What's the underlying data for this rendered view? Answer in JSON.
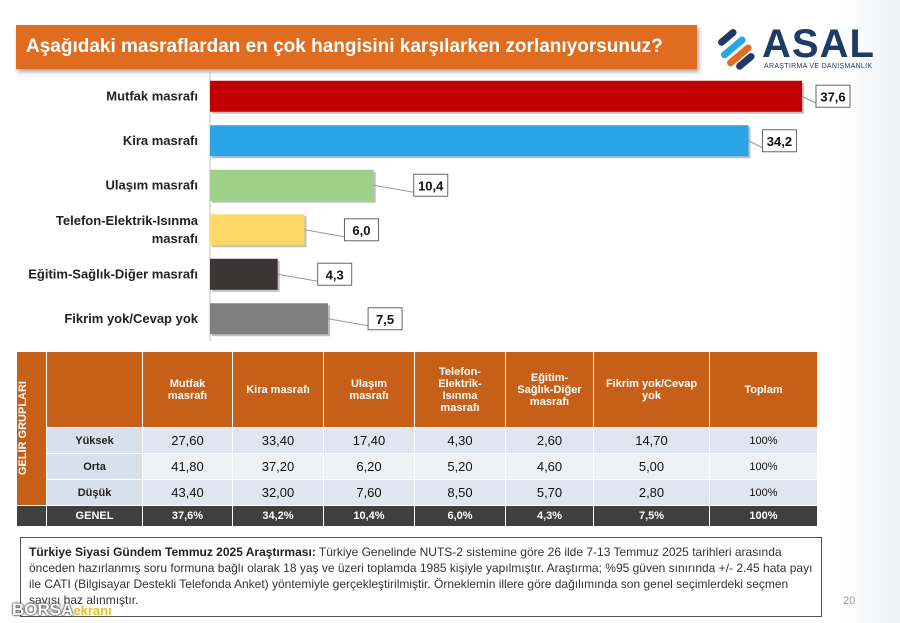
{
  "title": "Aşağıdaki masraflardan en çok hangisini karşılarken zorlanıyorsunuz?",
  "logo": {
    "word": "ASAL",
    "sub": "ARAŞTIRMA VE DANIŞMANLIK"
  },
  "chart_data": {
    "type": "bar",
    "orientation": "horizontal",
    "categories": [
      "Mutfak masrafı",
      "Kira masrafı",
      "Ulaşım masrafı",
      "Telefon-Elektrik-Isınma masrafı",
      "Eğitim-Sağlık-Diğer masrafı",
      "Fikrim yok/Cevap yok"
    ],
    "category_lines": [
      [
        "Mutfak masrafı"
      ],
      [
        "Kira masrafı"
      ],
      [
        "Ulaşım masrafı"
      ],
      [
        "Telefon-Elektrik-Isınma",
        "masrafı"
      ],
      [
        "Eğitim-Sağlık-Diğer masrafı"
      ],
      [
        "Fikrim yok/Cevap yok"
      ]
    ],
    "values": [
      37.6,
      34.2,
      10.4,
      6.0,
      4.3,
      7.5
    ],
    "labels": [
      "37,6",
      "34,2",
      "10,4",
      "6,0",
      "4,3",
      "7,5"
    ],
    "colors": [
      "#c00000",
      "#2aa5e8",
      "#9fd08a",
      "#ffd966",
      "#3a3434",
      "#7f7f7f"
    ],
    "xlim": [
      0,
      40
    ],
    "grid": false,
    "legend": "none"
  },
  "table": {
    "side_label": "GELİR GRUPLARI",
    "headers": [
      [
        "Mutfak",
        "masrafı"
      ],
      [
        "Kira masrafı"
      ],
      [
        "Ulaşım",
        "masrafı"
      ],
      [
        "Telefon-",
        "Elektrik-",
        "Isınma",
        "masrafı"
      ],
      [
        "Eğitim-",
        "Sağlık-Diğer",
        "masrafı"
      ],
      [
        "Fikrim yok/Cevap",
        "yok"
      ],
      [
        "Toplam"
      ]
    ],
    "rows": [
      {
        "label": "Yüksek",
        "values": [
          "27,60",
          "33,40",
          "17,40",
          "4,30",
          "2,60",
          "14,70"
        ],
        "total": "100%"
      },
      {
        "label": "Orta",
        "values": [
          "41,80",
          "37,20",
          "6,20",
          "5,20",
          "4,60",
          "5,00"
        ],
        "total": "100%"
      },
      {
        "label": "Düşük",
        "values": [
          "43,40",
          "32,00",
          "7,60",
          "8,50",
          "5,70",
          "2,80"
        ],
        "total": "100%"
      }
    ],
    "general": {
      "label": "GENEL",
      "values": [
        "37,6%",
        "34,2%",
        "10,4%",
        "6,0%",
        "4,3%",
        "7,5%",
        "100%"
      ]
    }
  },
  "note": {
    "bold": "Türkiye Siyasi Gündem Temmuz 2025 Araştırması:",
    "text": " Türkiye Genelinde NUTS-2 sistemine göre 26 ilde 7-13 Temmuz 2025 tarihleri arasında önceden hazırlanmış soru formuna bağlı olarak 18 yaş ve üzeri toplamda 1985 kişiyle yapılmıştır. Araştırma; %95 güven sınırında +/- 2.45 hata payı ile CATI (Bilgisayar Destekli Telefonda Anket) yöntemiyle gerçekleştirilmiştir. Örneklemin illere göre dağılımında son genel seçimlerdeki seçmen sayısı baz alınmıştır."
  },
  "page_number": "20",
  "watermark": {
    "part1": "BORSA",
    "part2": "ekranı"
  }
}
